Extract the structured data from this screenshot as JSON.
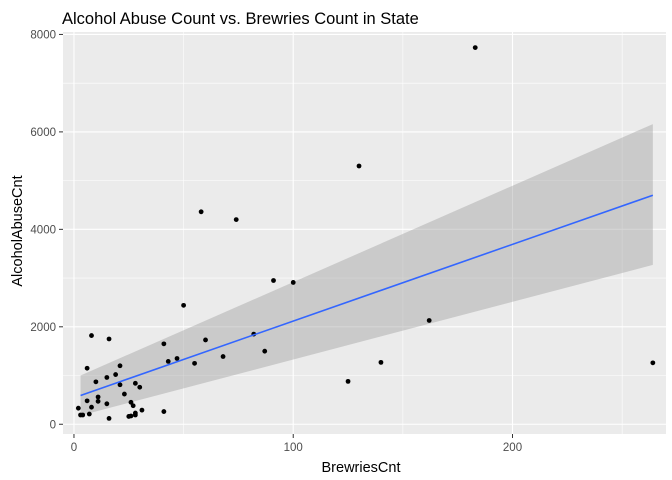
{
  "chart_data": {
    "type": "scatter",
    "title": "Alcohol Abuse Count vs. Brewries Count in State",
    "xlabel": "BrewriesCnt",
    "ylabel": "AlcoholAbuseCnt",
    "xlim": [
      -5,
      270
    ],
    "ylim": [
      -200,
      8050
    ],
    "x_ticks": [
      0,
      100,
      200
    ],
    "y_ticks": [
      0,
      2000,
      4000,
      6000,
      8000
    ],
    "grid": true,
    "points": [
      {
        "x": 183,
        "y": 7730
      },
      {
        "x": 130,
        "y": 5300
      },
      {
        "x": 58,
        "y": 4360
      },
      {
        "x": 74,
        "y": 4200
      },
      {
        "x": 91,
        "y": 2950
      },
      {
        "x": 100,
        "y": 2910
      },
      {
        "x": 50,
        "y": 2440
      },
      {
        "x": 162,
        "y": 2130
      },
      {
        "x": 264,
        "y": 1260
      },
      {
        "x": 140,
        "y": 1270
      },
      {
        "x": 125,
        "y": 880
      },
      {
        "x": 82,
        "y": 1850
      },
      {
        "x": 87,
        "y": 1500
      },
      {
        "x": 60,
        "y": 1730
      },
      {
        "x": 68,
        "y": 1390
      },
      {
        "x": 55,
        "y": 1250
      },
      {
        "x": 47,
        "y": 1350
      },
      {
        "x": 43,
        "y": 1290
      },
      {
        "x": 41,
        "y": 1650
      },
      {
        "x": 41,
        "y": 260
      },
      {
        "x": 8,
        "y": 1820
      },
      {
        "x": 16,
        "y": 1750
      },
      {
        "x": 6,
        "y": 1150
      },
      {
        "x": 21,
        "y": 1200
      },
      {
        "x": 19,
        "y": 1020
      },
      {
        "x": 15,
        "y": 960
      },
      {
        "x": 10,
        "y": 870
      },
      {
        "x": 21,
        "y": 810
      },
      {
        "x": 28,
        "y": 840
      },
      {
        "x": 30,
        "y": 760
      },
      {
        "x": 23,
        "y": 620
      },
      {
        "x": 11,
        "y": 560
      },
      {
        "x": 11,
        "y": 470
      },
      {
        "x": 6,
        "y": 480
      },
      {
        "x": 26,
        "y": 450
      },
      {
        "x": 27,
        "y": 380
      },
      {
        "x": 15,
        "y": 420
      },
      {
        "x": 8,
        "y": 350
      },
      {
        "x": 2,
        "y": 330
      },
      {
        "x": 7,
        "y": 210
      },
      {
        "x": 3,
        "y": 190
      },
      {
        "x": 4,
        "y": 190
      },
      {
        "x": 26,
        "y": 170
      },
      {
        "x": 28,
        "y": 190
      },
      {
        "x": 25,
        "y": 160
      },
      {
        "x": 16,
        "y": 120
      },
      {
        "x": 31,
        "y": 290
      },
      {
        "x": 28,
        "y": 230
      }
    ],
    "smooth": {
      "method": "lm",
      "x": [
        3,
        264
      ],
      "y": [
        590,
        4700
      ],
      "ci_lower": [
        180,
        3270
      ],
      "ci_upper": [
        1000,
        6160
      ]
    },
    "colors": {
      "panel": "#ebebeb",
      "grid_major": "#ffffff",
      "point": "#000000",
      "line": "#3366ff",
      "ribbon": "#999999"
    }
  }
}
